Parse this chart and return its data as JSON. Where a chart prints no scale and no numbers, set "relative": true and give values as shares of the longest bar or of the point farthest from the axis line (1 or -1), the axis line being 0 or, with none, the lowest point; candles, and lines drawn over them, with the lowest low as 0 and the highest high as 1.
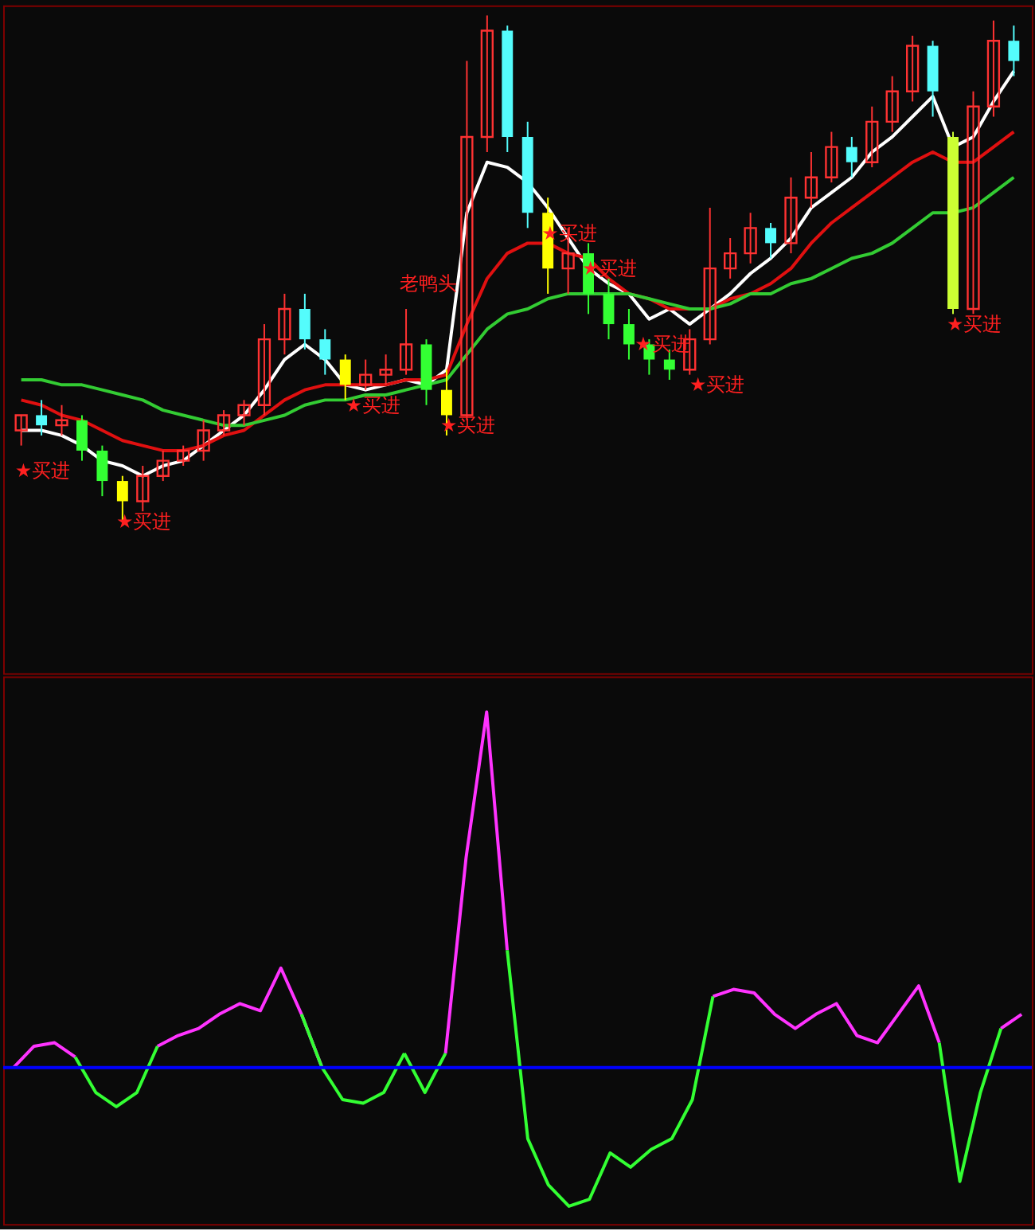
{
  "chart_data": [
    {
      "type": "candlestick",
      "relative": true,
      "categories": [
        null,
        null,
        null,
        null,
        null,
        null,
        null,
        null,
        null,
        null,
        null,
        null,
        null,
        null,
        null,
        null,
        null,
        null,
        null,
        null,
        null,
        null,
        null,
        null,
        null,
        null,
        null,
        null,
        null,
        null,
        null,
        null,
        null,
        null,
        null,
        null,
        null,
        null,
        null,
        null,
        null,
        null,
        null,
        null,
        null,
        null,
        null,
        null,
        null,
        null
      ],
      "ohlc": [
        [
          0.18,
          0.21,
          0.15,
          0.21
        ],
        [
          0.21,
          0.24,
          0.17,
          0.19
        ],
        [
          0.19,
          0.23,
          0.17,
          0.2
        ],
        [
          0.2,
          0.21,
          0.12,
          0.14
        ],
        [
          0.14,
          0.15,
          0.05,
          0.08
        ],
        [
          0.08,
          0.09,
          0,
          0.04
        ],
        [
          0.04,
          0.11,
          0.02,
          0.09
        ],
        [
          0.09,
          0.14,
          0.08,
          0.12
        ],
        [
          0.12,
          0.15,
          0.11,
          0.14
        ],
        [
          0.14,
          0.2,
          0.12,
          0.18
        ],
        [
          0.18,
          0.22,
          0.17,
          0.21
        ],
        [
          0.21,
          0.24,
          0.19,
          0.23
        ],
        [
          0.23,
          0.39,
          0.21,
          0.36
        ],
        [
          0.36,
          0.45,
          0.33,
          0.42
        ],
        [
          0.42,
          0.45,
          0.34,
          0.36
        ],
        [
          0.36,
          0.38,
          0.29,
          0.32
        ],
        [
          0.32,
          0.33,
          0.24,
          0.27
        ],
        [
          0.27,
          0.32,
          0.26,
          0.29
        ],
        [
          0.29,
          0.33,
          0.27,
          0.3
        ],
        [
          0.3,
          0.42,
          0.29,
          0.35
        ],
        [
          0.35,
          0.36,
          0.23,
          0.26
        ],
        [
          0.26,
          0.3,
          0.17,
          0.21
        ],
        [
          0.21,
          0.91,
          0.2,
          0.76
        ],
        [
          0.76,
          1,
          0.73,
          0.97
        ],
        [
          0.97,
          0.98,
          0.73,
          0.76
        ],
        [
          0.76,
          0.79,
          0.58,
          0.61
        ],
        [
          0.61,
          0.64,
          0.45,
          0.5
        ],
        [
          0.5,
          0.58,
          0.45,
          0.53
        ],
        [
          0.53,
          0.55,
          0.41,
          0.45
        ],
        [
          0.45,
          0.48,
          0.36,
          0.39
        ],
        [
          0.39,
          0.42,
          0.32,
          0.35
        ],
        [
          0.35,
          0.36,
          0.29,
          0.32
        ],
        [
          0.32,
          0.34,
          0.28,
          0.3
        ],
        [
          0.3,
          0.38,
          0.29,
          0.36
        ],
        [
          0.36,
          0.62,
          0.35,
          0.5
        ],
        [
          0.5,
          0.56,
          0.48,
          0.53
        ],
        [
          0.53,
          0.61,
          0.51,
          0.58
        ],
        [
          0.58,
          0.59,
          0.52,
          0.55
        ],
        [
          0.55,
          0.68,
          0.53,
          0.64
        ],
        [
          0.64,
          0.73,
          0.62,
          0.68
        ],
        [
          0.68,
          0.77,
          0.67,
          0.74
        ],
        [
          0.74,
          0.76,
          0.68,
          0.71
        ],
        [
          0.71,
          0.82,
          0.7,
          0.79
        ],
        [
          0.79,
          0.88,
          0.77,
          0.85
        ],
        [
          0.85,
          0.96,
          0.83,
          0.94
        ],
        [
          0.94,
          0.95,
          0.8,
          0.85
        ],
        [
          0.76,
          0.77,
          0.41,
          0.42
        ],
        [
          0.42,
          0.85,
          0.41,
          0.82
        ],
        [
          0.82,
          0.99,
          0.8,
          0.95
        ],
        [
          0.95,
          0.98,
          0.88,
          0.91
        ]
      ],
      "tick_labels": false,
      "colors": [
        "#ff3232",
        "#54fcfc",
        "#ff3232",
        "#33ff33",
        "#33ff33",
        "#ffff00",
        "#ff3232",
        "#ff3232",
        "#ff3232",
        "#ff3232",
        "#ff3232",
        "#ff3232",
        "#ff3232",
        "#ff3232",
        "#54fcfc",
        "#54fcfc",
        "#ffff00",
        "#ff3232",
        "#ff3232",
        "#ff3232",
        "#33ff33",
        "#ffff00",
        "#ff3232",
        "#ff3232",
        "#54fcfc",
        "#54fcfc",
        "#ffff00",
        "#ff3232",
        "#33ff33",
        "#33ff33",
        "#33ff33",
        "#33ff33",
        "#33ff33",
        "#ff3232",
        "#ff3232",
        "#ff3232",
        "#ff3232",
        "#54fcfc",
        "#ff3232",
        "#ff3232",
        "#ff3232",
        "#54fcfc",
        "#ff3232",
        "#ff3232",
        "#ff3232",
        "#54fcfc",
        "#ccff33",
        "#ff3232",
        "#ff3232",
        "#54fcfc"
      ],
      "series": [
        {
          "type": "line",
          "color": "#ffffff",
          "values": [
            0.18,
            0.18,
            0.17,
            0.15,
            0.12,
            0.11,
            0.09,
            0.11,
            0.12,
            0.15,
            0.18,
            0.21,
            0.26,
            0.32,
            0.35,
            0.32,
            0.27,
            0.26,
            0.27,
            0.28,
            0.27,
            0.3,
            0.61,
            0.71,
            0.7,
            0.67,
            0.62,
            0.56,
            0.5,
            0.47,
            0.45,
            0.4,
            0.42,
            0.39,
            0.42,
            0.45,
            0.49,
            0.52,
            0.56,
            0.62,
            0.65,
            0.68,
            0.73,
            0.76,
            0.8,
            0.84,
            0.74,
            0.76,
            0.83,
            0.89
          ]
        },
        {
          "type": "line",
          "color": "#e01010",
          "values": [
            0.24,
            0.23,
            0.21,
            0.2,
            0.18,
            0.16,
            0.15,
            0.14,
            0.14,
            0.15,
            0.17,
            0.18,
            0.21,
            0.24,
            0.26,
            0.27,
            0.27,
            0.27,
            0.27,
            0.28,
            0.28,
            0.29,
            0.39,
            0.48,
            0.53,
            0.55,
            0.55,
            0.53,
            0.52,
            0.48,
            0.45,
            0.44,
            0.42,
            0.42,
            0.42,
            0.44,
            0.45,
            0.47,
            0.5,
            0.55,
            0.59,
            0.62,
            0.65,
            0.68,
            0.71,
            0.73,
            0.71,
            0.71,
            0.74,
            0.77
          ]
        },
        {
          "type": "line",
          "color": "#33cc33",
          "values": [
            0.28,
            0.28,
            0.27,
            0.27,
            0.26,
            0.25,
            0.24,
            0.22,
            0.21,
            0.2,
            0.19,
            0.19,
            0.2,
            0.21,
            0.23,
            0.24,
            0.24,
            0.25,
            0.25,
            0.26,
            0.27,
            0.28,
            0.33,
            0.38,
            0.41,
            0.42,
            0.44,
            0.45,
            0.45,
            0.45,
            0.45,
            0.44,
            0.43,
            0.42,
            0.42,
            0.43,
            0.45,
            0.45,
            0.47,
            0.48,
            0.5,
            0.52,
            0.53,
            0.55,
            0.58,
            0.61,
            0.61,
            0.62,
            0.65,
            0.68
          ]
        }
      ],
      "annotations": [
        "★买进",
        "★买进",
        "★买进",
        "老鸭头",
        "★买进",
        "★买进",
        "★买进",
        "★买进",
        "★买进",
        "★买进"
      ]
    },
    {
      "type": "line",
      "relative": true,
      "categories": [
        null,
        null,
        null,
        null,
        null,
        null,
        null,
        null,
        null,
        null,
        null,
        null,
        null,
        null,
        null,
        null,
        null,
        null,
        null,
        null,
        null,
        null,
        null,
        null,
        null,
        null,
        null,
        null,
        null,
        null,
        null,
        null,
        null,
        null,
        null,
        null,
        null,
        null,
        null,
        null,
        null,
        null,
        null,
        null,
        null,
        null,
        null,
        null,
        null,
        null
      ],
      "series": [
        {
          "color": "#ff33ff",
          "values": [
            0,
            0.06,
            0.07,
            0.03,
            null,
            null,
            null,
            null,
            null,
            null,
            null,
            null,
            null,
            null,
            null,
            null,
            null,
            null,
            null,
            null,
            null,
            null,
            null,
            null,
            null,
            null,
            null,
            null,
            null,
            null,
            null,
            null,
            null,
            null,
            null,
            null,
            null,
            null,
            null,
            null,
            null,
            null,
            null,
            null,
            null,
            null,
            null,
            null,
            null,
            null
          ]
        },
        {
          "color": "#ff33ff",
          "values": [
            null,
            null,
            null,
            null,
            null,
            null,
            null,
            0.06,
            0.09,
            0.11,
            0.15,
            0.18,
            0.16,
            0.28,
            0.15,
            0,
            null,
            null,
            null,
            null,
            null,
            null,
            null,
            null,
            null,
            null,
            null,
            null,
            null,
            null,
            null,
            null,
            null,
            null,
            null,
            null,
            null,
            null,
            null,
            null,
            null,
            null,
            null,
            null,
            null,
            null,
            null,
            null,
            null,
            null
          ]
        },
        {
          "color": "#ff33ff",
          "values": [
            null,
            null,
            null,
            null,
            null,
            null,
            null,
            null,
            null,
            null,
            null,
            null,
            null,
            null,
            null,
            null,
            null,
            null,
            null,
            null,
            null,
            0.04,
            0.59,
            1,
            0.33,
            null,
            null,
            null,
            null,
            null,
            null,
            null,
            null,
            null,
            null,
            null,
            null,
            null,
            null,
            null,
            null,
            null,
            null,
            null,
            null,
            null,
            null,
            null,
            null,
            null
          ]
        },
        {
          "color": "#ff33ff",
          "values": [
            null,
            null,
            null,
            null,
            null,
            null,
            null,
            null,
            null,
            null,
            null,
            null,
            null,
            null,
            null,
            null,
            null,
            null,
            null,
            null,
            null,
            null,
            null,
            null,
            null,
            null,
            null,
            null,
            null,
            null,
            null,
            null,
            null,
            null,
            0.2,
            0.22,
            0.21,
            0.15,
            0.11,
            0.15,
            0.18,
            0.09,
            0.07,
            0.15,
            0.23,
            0.07,
            null,
            null,
            null,
            null
          ]
        },
        {
          "color": "#ff33ff",
          "values": [
            null,
            null,
            null,
            null,
            null,
            null,
            null,
            null,
            null,
            null,
            null,
            null,
            null,
            null,
            null,
            null,
            null,
            null,
            null,
            null,
            null,
            null,
            null,
            null,
            null,
            null,
            null,
            null,
            null,
            null,
            null,
            null,
            null,
            null,
            null,
            null,
            null,
            null,
            null,
            null,
            null,
            null,
            null,
            null,
            null,
            null,
            null,
            null,
            0.11,
            0.15
          ]
        },
        {
          "color": "#33ff33",
          "values": [
            null,
            null,
            null,
            0.03,
            -0.07,
            -0.11,
            -0.07,
            0.06,
            null,
            null,
            null,
            null,
            null,
            null,
            null,
            null,
            null,
            null,
            null,
            null,
            null,
            null,
            null,
            null,
            null,
            null,
            null,
            null,
            null,
            null,
            null,
            null,
            null,
            null,
            null,
            null,
            null,
            null,
            null,
            null,
            null,
            null,
            null,
            null,
            null,
            null,
            null,
            null,
            null,
            null
          ]
        },
        {
          "color": "#33ff33",
          "values": [
            null,
            null,
            null,
            null,
            null,
            null,
            null,
            null,
            null,
            null,
            null,
            null,
            null,
            null,
            0.15,
            0,
            -0.09,
            -0.1,
            -0.07,
            0.04,
            null,
            null,
            null,
            null,
            null,
            null,
            null,
            null,
            null,
            null,
            null,
            null,
            null,
            null,
            null,
            null,
            null,
            null,
            null,
            null,
            null,
            null,
            null,
            null,
            null,
            null,
            null,
            null,
            null,
            null
          ]
        },
        {
          "color": "#33ff33",
          "values": [
            null,
            null,
            null,
            null,
            null,
            null,
            null,
            null,
            null,
            null,
            null,
            null,
            null,
            null,
            null,
            null,
            null,
            null,
            null,
            0.04,
            -0.07,
            0.04,
            null,
            null,
            null,
            null,
            null,
            null,
            null,
            null,
            null,
            null,
            null,
            null,
            null,
            null,
            null,
            null,
            null,
            null,
            null,
            null,
            null,
            null,
            null,
            null,
            null,
            null,
            null,
            null
          ]
        },
        {
          "color": "#33ff33",
          "values": [
            null,
            null,
            null,
            null,
            null,
            null,
            null,
            null,
            null,
            null,
            null,
            null,
            null,
            null,
            null,
            null,
            null,
            null,
            null,
            null,
            null,
            null,
            null,
            null,
            0.33,
            -0.2,
            -0.33,
            -0.39,
            -0.37,
            -0.24,
            -0.28,
            -0.23,
            -0.2,
            -0.09,
            0.2,
            null,
            null,
            null,
            null,
            null,
            null,
            null,
            null,
            null,
            null,
            null,
            null,
            null,
            null,
            null
          ]
        },
        {
          "color": "#33ff33",
          "values": [
            null,
            null,
            null,
            null,
            null,
            null,
            null,
            null,
            null,
            null,
            null,
            null,
            null,
            null,
            null,
            null,
            null,
            null,
            null,
            null,
            null,
            null,
            null,
            null,
            null,
            null,
            null,
            null,
            null,
            null,
            null,
            null,
            null,
            null,
            null,
            null,
            null,
            null,
            null,
            null,
            null,
            null,
            null,
            null,
            null,
            0.07,
            -0.32,
            -0.07,
            0.11,
            null
          ]
        }
      ],
      "tick_labels": false,
      "ref_lines": [
        {
          "axis": "y",
          "value": 0,
          "color": "#0000ff"
        }
      ]
    }
  ]
}
